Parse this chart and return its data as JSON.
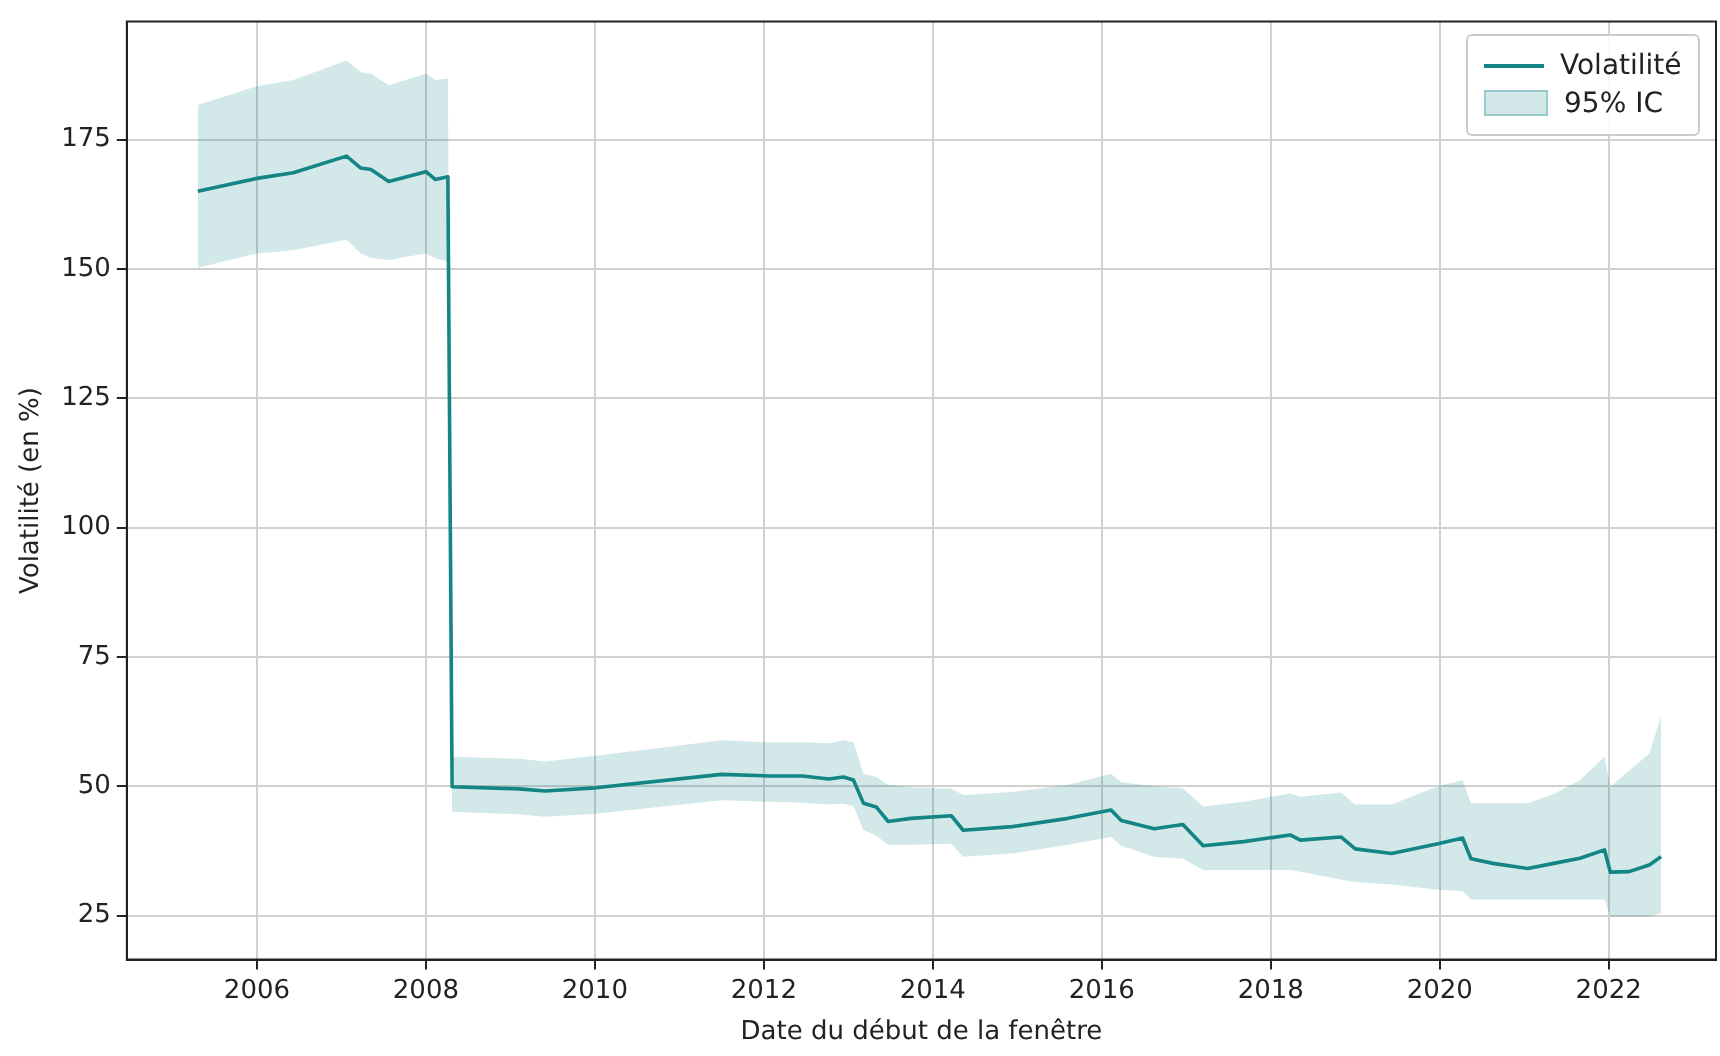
{
  "chart_data": {
    "type": "line",
    "xlabel": "Date du début de la fenêtre",
    "ylabel": "Volatilité (en %)",
    "xlim": [
      2004.46,
      2023.27
    ],
    "ylim": [
      16.5,
      197.8
    ],
    "xticks": [
      2006,
      2008,
      2010,
      2012,
      2014,
      2016,
      2018,
      2020,
      2022
    ],
    "yticks": [
      25,
      50,
      75,
      100,
      125,
      150,
      175
    ],
    "annotations": [
      "95% IC"
    ],
    "grid": true,
    "legend": "top right",
    "marker": "none",
    "line_style": "solid",
    "x": [
      2005.3,
      2006.0,
      2006.43,
      2007.06,
      2007.23,
      2007.35,
      2007.56,
      2008.0,
      2008.11,
      2008.26,
      2008.31,
      2009.1,
      2009.41,
      2010.01,
      2011.5,
      2012.05,
      2012.46,
      2012.77,
      2012.94,
      2013.06,
      2013.18,
      2013.33,
      2013.47,
      2013.74,
      2014.22,
      2014.36,
      2014.94,
      2015.6,
      2016.11,
      2016.23,
      2016.62,
      2016.96,
      2017.2,
      2017.68,
      2018.23,
      2018.35,
      2018.83,
      2019.0,
      2019.43,
      2019.98,
      2020.27,
      2020.37,
      2020.63,
      2021.04,
      2021.35,
      2021.66,
      2021.95,
      2022.02,
      2022.24,
      2022.48,
      2022.62
    ],
    "series": [
      {
        "name": "Volatilité",
        "color": "#138585",
        "values": [
          165.0,
          167.5,
          168.6,
          171.8,
          169.5,
          169.2,
          166.9,
          168.8,
          167.3,
          167.8,
          49.9,
          49.5,
          49.1,
          49.7,
          52.3,
          52.0,
          52.0,
          51.4,
          51.8,
          51.2,
          46.7,
          46.0,
          43.2,
          43.8,
          44.3,
          41.5,
          42.2,
          43.8,
          45.4,
          43.4,
          41.8,
          42.6,
          38.5,
          39.3,
          40.6,
          39.6,
          40.2,
          37.9,
          37.0,
          38.9,
          40.0,
          36.0,
          35.1,
          34.1,
          35.1,
          36.1,
          37.7,
          33.4,
          33.5,
          34.8,
          36.4
        ],
        "lower": [
          150.2,
          153.0,
          153.6,
          155.7,
          153.0,
          152.1,
          151.7,
          153.0,
          152.0,
          151.5,
          45.1,
          44.6,
          44.1,
          44.7,
          47.3,
          47.0,
          46.8,
          46.5,
          46.6,
          46.2,
          41.5,
          40.5,
          38.7,
          38.7,
          38.9,
          36.4,
          37.0,
          38.7,
          40.2,
          38.5,
          36.4,
          36.0,
          33.8,
          33.8,
          33.8,
          33.5,
          32.0,
          31.5,
          31.0,
          30.0,
          29.7,
          28.1,
          28.1,
          28.1,
          28.1,
          28.1,
          28.1,
          24.8,
          24.8,
          24.8,
          25.5
        ],
        "upper": [
          181.7,
          185.3,
          186.5,
          190.3,
          188.0,
          187.7,
          185.5,
          187.7,
          186.5,
          186.8,
          55.7,
          55.3,
          54.8,
          55.9,
          58.9,
          58.5,
          58.5,
          58.3,
          58.9,
          58.5,
          52.4,
          51.8,
          50.3,
          49.8,
          49.5,
          48.3,
          48.9,
          50.3,
          52.4,
          50.8,
          50.0,
          49.6,
          46.1,
          47.0,
          48.6,
          48.0,
          48.8,
          46.5,
          46.5,
          50.0,
          51.2,
          46.7,
          46.7,
          46.7,
          48.5,
          51.2,
          55.7,
          49.9,
          53.0,
          56.3,
          63.6
        ]
      }
    ]
  }
}
